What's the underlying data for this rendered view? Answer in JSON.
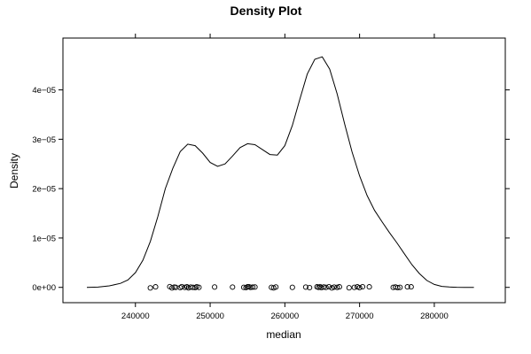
{
  "chart_data": {
    "type": "line",
    "title": "Density Plot",
    "xlabel": "median",
    "ylabel": "Density",
    "xlim": [
      230300,
      289500
    ],
    "ylim": [
      -3.1e-06,
      5.05e-05
    ],
    "x_ticks": [
      240000,
      250000,
      260000,
      270000,
      280000
    ],
    "x_tick_labels": [
      "240000",
      "250000",
      "260000",
      "270000",
      "280000"
    ],
    "y_ticks": [
      0,
      1e-05,
      2e-05,
      3e-05,
      4e-05
    ],
    "y_tick_labels": [
      "0e+00",
      "1e−05",
      "2e−05",
      "3e−05",
      "4e−05"
    ],
    "grid": false,
    "legend": "none",
    "series": [
      {
        "x": [
          233500,
          235000,
          236500,
          238000,
          239000,
          240000,
          241000,
          242000,
          243000,
          244000,
          245000,
          246000,
          247000,
          248000,
          249000,
          250000,
          251000,
          252000,
          253000,
          254000,
          255000,
          256000,
          257000,
          258000,
          259000,
          260000,
          261000,
          262000,
          263000,
          264000,
          265000,
          266000,
          267000,
          268000,
          269000,
          270000,
          271000,
          272000,
          273000,
          274000,
          275000,
          276000,
          277000,
          278000,
          279000,
          280000,
          281000,
          282000,
          283000,
          284000,
          285300
        ],
        "y": [
          0.0,
          5e-08,
          3e-07,
          8e-07,
          1.5e-06,
          3e-06,
          5.5e-06,
          9.3e-06,
          1.43e-05,
          2e-05,
          2.41e-05,
          2.75e-05,
          2.9e-05,
          2.87e-05,
          2.72e-05,
          2.53e-05,
          2.45e-05,
          2.5e-05,
          2.66e-05,
          2.83e-05,
          2.91e-05,
          2.89e-05,
          2.79e-05,
          2.69e-05,
          2.68e-05,
          2.87e-05,
          3.28e-05,
          3.81e-05,
          4.32e-05,
          4.62e-05,
          4.67e-05,
          4.42e-05,
          3.92e-05,
          3.31e-05,
          2.74e-05,
          2.26e-05,
          1.86e-05,
          1.56e-05,
          1.33e-05,
          1.11e-05,
          9e-06,
          6.8e-06,
          4.6e-06,
          2.8e-06,
          1.4e-06,
          6e-07,
          2e-07,
          7e-08,
          2e-08,
          0.0,
          0.0
        ]
      }
    ],
    "rug_points": {
      "x": [
        242000,
        242700,
        244600,
        244900,
        245200,
        245400,
        246000,
        246200,
        246600,
        246900,
        247100,
        247400,
        247700,
        248000,
        248200,
        248500,
        250600,
        253000,
        254500,
        254800,
        255000,
        255200,
        255400,
        255700,
        256000,
        258200,
        258500,
        258800,
        261000,
        262800,
        263300,
        264300,
        264500,
        264700,
        264900,
        265200,
        265500,
        265900,
        266300,
        266600,
        267000,
        267300,
        268600,
        269300,
        269700,
        270000,
        270400,
        271300,
        274500,
        274800,
        275100,
        275400,
        276400,
        276900
      ],
      "y": [
        -1e-07,
        1e-07,
        1.5e-07,
        -1e-07,
        5e-08,
        0.0,
        -5e-08,
        1.5e-07,
        0.0,
        1e-07,
        -1e-07,
        5e-08,
        0.0,
        -5e-08,
        1.2e-07,
        0.0,
        8e-08,
        5e-08,
        0.0,
        -5e-08,
        1e-07,
        1.2e-07,
        0.0,
        5e-08,
        8e-08,
        0.0,
        -1e-07,
        8e-08,
        0.0,
        5e-08,
        -5e-08,
        1e-07,
        0.0,
        1.5e-07,
        -5e-08,
        8e-08,
        0.0,
        1.2e-07,
        -1e-07,
        5e-08,
        0.0,
        1e-07,
        -8e-08,
        0.0,
        1e-07,
        -5e-08,
        1.2e-07,
        1e-07,
        0.0,
        8e-08,
        -5e-08,
        0.0,
        1e-07,
        1e-07
      ]
    }
  }
}
